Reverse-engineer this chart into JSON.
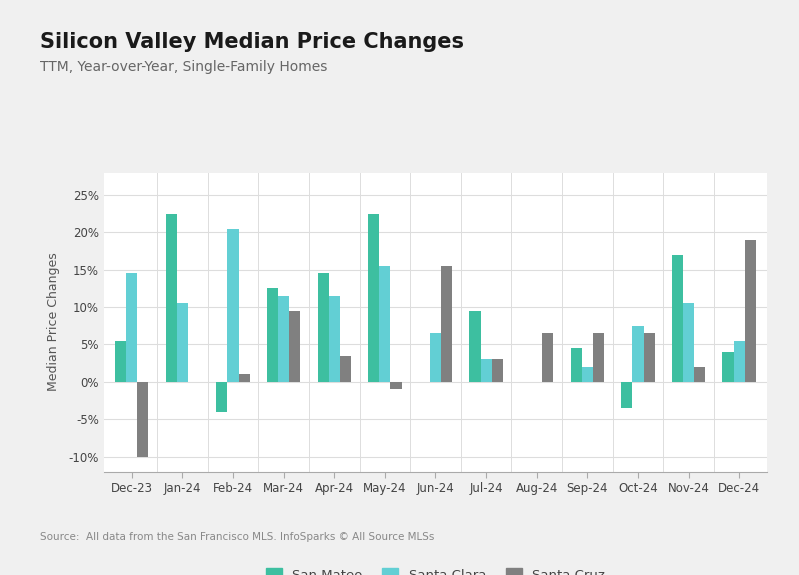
{
  "title": "Silicon Valley Median Price Changes",
  "subtitle": "TTM, Year-over-Year, Single-Family Homes",
  "ylabel": "Median Price Changes",
  "source": "Source:  All data from the San Francisco MLS. InfoSparks © All Source MLSs",
  "categories": [
    "Dec-23",
    "Jan-24",
    "Feb-24",
    "Mar-24",
    "Apr-24",
    "May-24",
    "Jun-24",
    "Jul-24",
    "Aug-24",
    "Sep-24",
    "Oct-24",
    "Nov-24",
    "Dec-24"
  ],
  "san_mateo": [
    5.5,
    22.5,
    -4.0,
    12.5,
    14.5,
    22.5,
    null,
    9.5,
    null,
    4.5,
    -3.5,
    17.0,
    4.0
  ],
  "santa_clara": [
    14.5,
    10.5,
    20.5,
    11.5,
    11.5,
    15.5,
    6.5,
    3.0,
    null,
    2.0,
    7.5,
    10.5,
    5.5
  ],
  "santa_cruz": [
    -10.0,
    null,
    1.0,
    9.5,
    3.5,
    -1.0,
    15.5,
    3.0,
    6.5,
    6.5,
    6.5,
    2.0,
    19.0
  ],
  "color_san_mateo": "#3dbfa0",
  "color_santa_clara": "#62cfd4",
  "color_santa_cruz": "#808080",
  "ylim": [
    -12,
    28
  ],
  "yticks": [
    -10,
    -5,
    0,
    5,
    10,
    15,
    20,
    25
  ],
  "background_color": "#ffffff",
  "outer_background": "#f0f0f0",
  "title_fontsize": 15,
  "subtitle_fontsize": 10,
  "bar_width": 0.22
}
